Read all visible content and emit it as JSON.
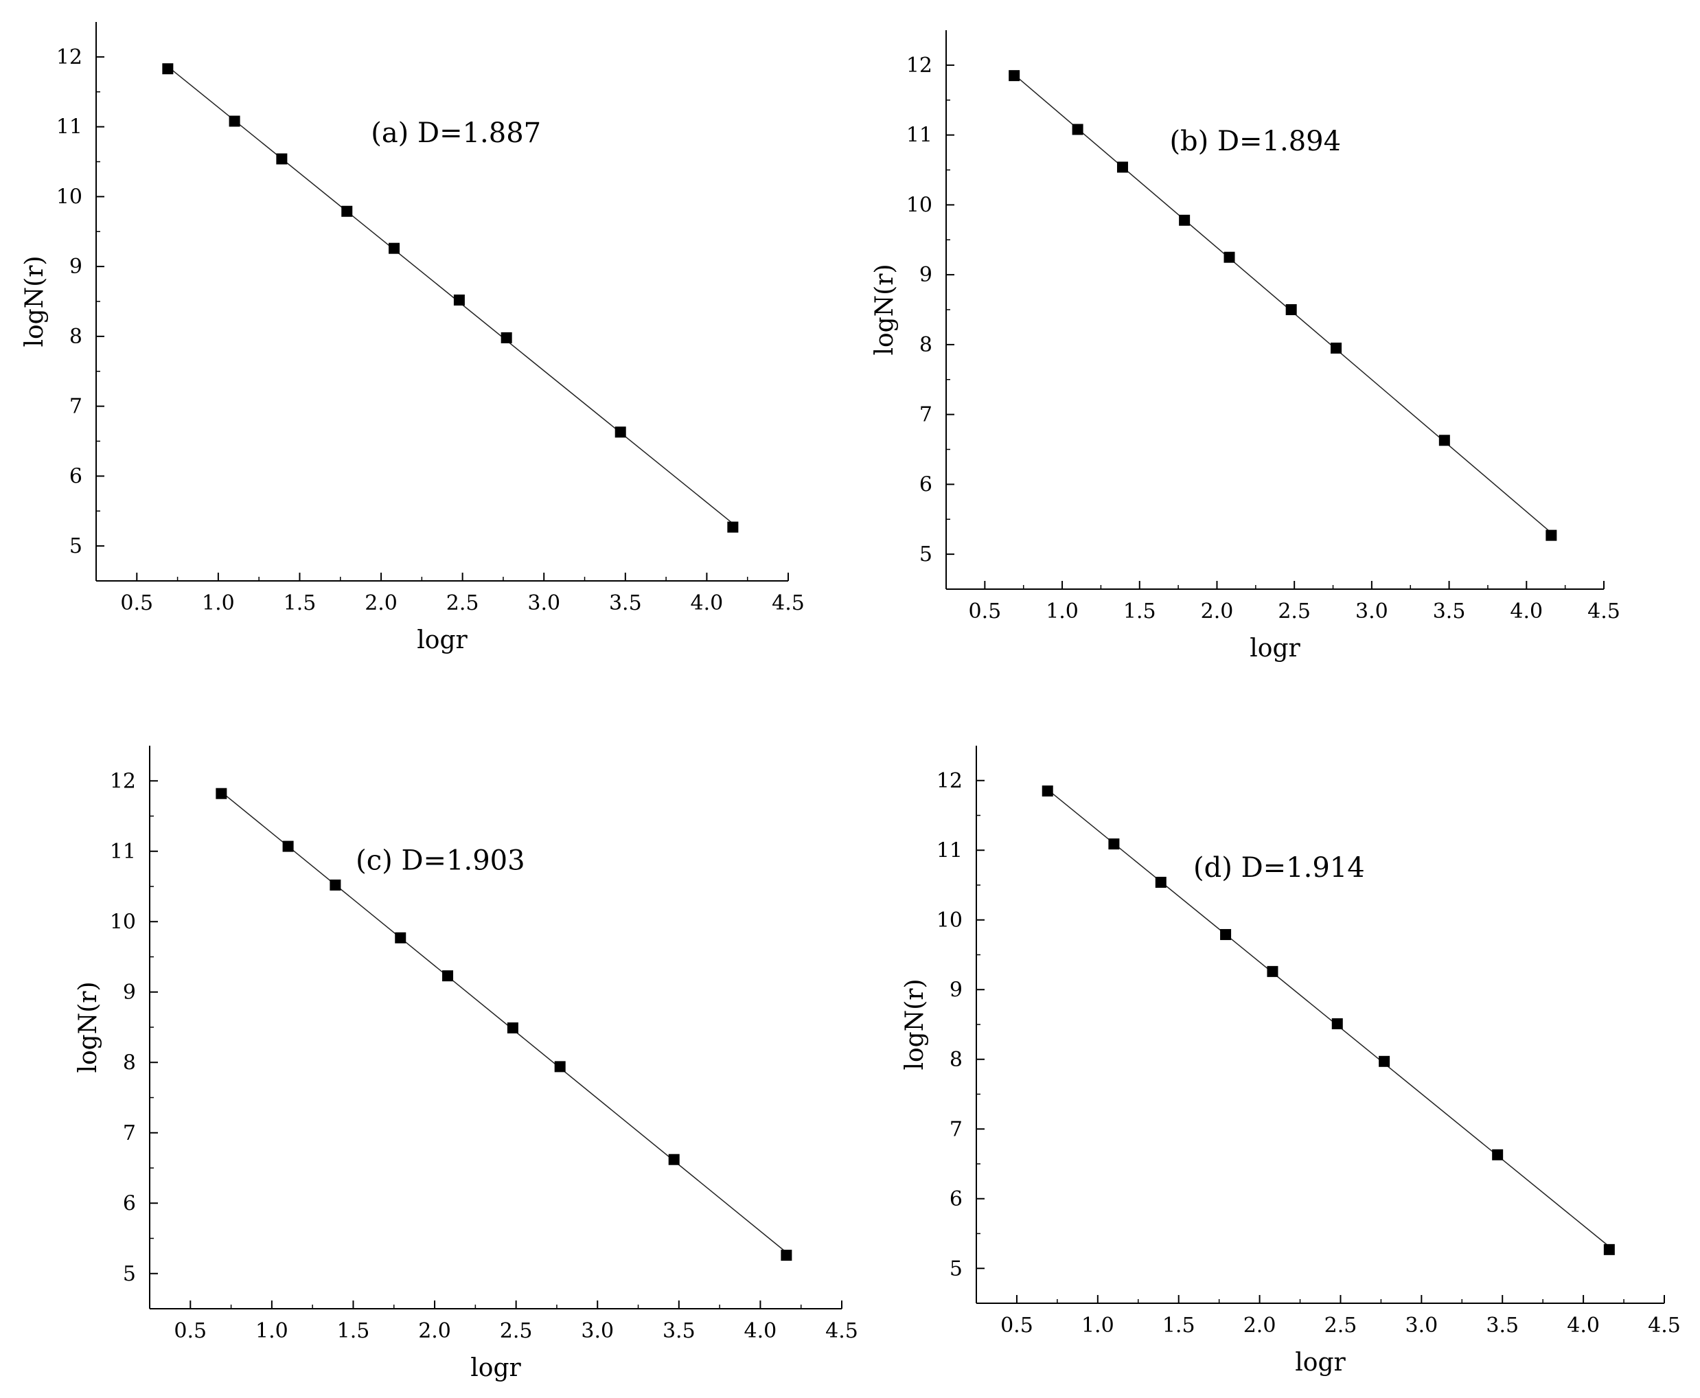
{
  "chart_data": [
    {
      "type": "scatter",
      "annotation": "(a) D=1.887",
      "xlabel": "logr",
      "ylabel": "logN(r)",
      "xlim": [
        0.25,
        4.5
      ],
      "ylim": [
        4.5,
        12.5
      ],
      "xticks": [
        "0.5",
        "1.0",
        "1.5",
        "2.0",
        "2.5",
        "3.0",
        "3.5",
        "4.0",
        "4.5"
      ],
      "yticks": [
        "5",
        "6",
        "7",
        "8",
        "9",
        "10",
        "11",
        "12"
      ],
      "x": [
        0.69,
        1.1,
        1.39,
        1.79,
        2.08,
        2.48,
        2.77,
        3.47,
        4.16
      ],
      "y": [
        11.83,
        11.08,
        10.54,
        9.79,
        9.26,
        8.52,
        7.98,
        6.63,
        5.27
      ],
      "fit_line": true
    },
    {
      "type": "scatter",
      "annotation": "(b) D=1.894",
      "xlabel": "logr",
      "ylabel": "logN(r)",
      "xlim": [
        0.25,
        4.5
      ],
      "ylim": [
        4.5,
        12.5
      ],
      "xticks": [
        "0.5",
        "1.0",
        "1.5",
        "2.0",
        "2.5",
        "3.0",
        "3.5",
        "4.0",
        "4.5"
      ],
      "yticks": [
        "5",
        "6",
        "7",
        "8",
        "9",
        "10",
        "11",
        "12"
      ],
      "x": [
        0.69,
        1.1,
        1.39,
        1.79,
        2.08,
        2.48,
        2.77,
        3.47,
        4.16
      ],
      "y": [
        11.85,
        11.08,
        10.54,
        9.78,
        9.25,
        8.5,
        7.95,
        6.63,
        5.27
      ],
      "fit_line": true
    },
    {
      "type": "scatter",
      "annotation": "(c) D=1.903",
      "xlabel": "logr",
      "ylabel": "logN(r)",
      "xlim": [
        0.25,
        4.5
      ],
      "ylim": [
        4.5,
        12.5
      ],
      "xticks": [
        "0.5",
        "1.0",
        "1.5",
        "2.0",
        "2.5",
        "3.0",
        "3.5",
        "4.0",
        "4.5"
      ],
      "yticks": [
        "5",
        "6",
        "7",
        "8",
        "9",
        "10",
        "11",
        "12"
      ],
      "x": [
        0.69,
        1.1,
        1.39,
        1.79,
        2.08,
        2.48,
        2.77,
        3.47,
        4.16
      ],
      "y": [
        11.82,
        11.07,
        10.52,
        9.77,
        9.23,
        8.49,
        7.94,
        6.62,
        5.26
      ],
      "fit_line": true
    },
    {
      "type": "scatter",
      "annotation": "(d) D=1.914",
      "xlabel": "logr",
      "ylabel": "logN(r)",
      "xlim": [
        0.25,
        4.5
      ],
      "ylim": [
        4.5,
        12.5
      ],
      "xticks": [
        "0.5",
        "1.0",
        "1.5",
        "2.0",
        "2.5",
        "3.0",
        "3.5",
        "4.0",
        "4.5"
      ],
      "yticks": [
        "5",
        "6",
        "7",
        "8",
        "9",
        "10",
        "11",
        "12"
      ],
      "x": [
        0.69,
        1.1,
        1.39,
        1.79,
        2.08,
        2.48,
        2.77,
        3.47,
        4.16
      ],
      "y": [
        11.85,
        11.09,
        10.54,
        9.79,
        9.26,
        8.51,
        7.97,
        6.63,
        5.27
      ],
      "fit_line": true
    }
  ]
}
